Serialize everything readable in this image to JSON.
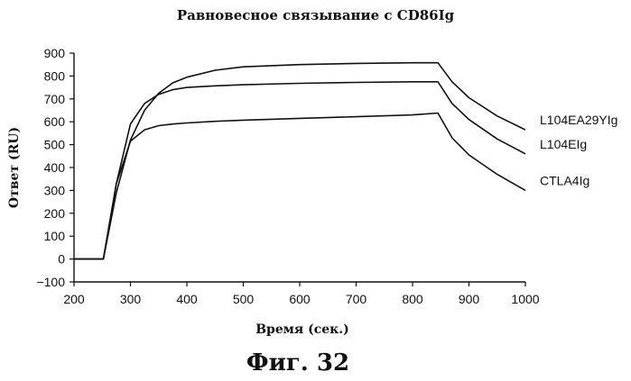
{
  "chart_data": {
    "type": "line",
    "title": "Равновесное связывание с CD86Ig",
    "xlabel": "Время (сек.)",
    "ylabel": "Ответ (RU)",
    "caption": "Фиг. 32",
    "xlim": [
      200,
      1000
    ],
    "ylim": [
      -100,
      900
    ],
    "xticks": [
      200,
      300,
      400,
      500,
      600,
      700,
      800,
      900,
      1000
    ],
    "yticks": [
      -100,
      0,
      100,
      200,
      300,
      400,
      500,
      600,
      700,
      800,
      900
    ],
    "grid": false,
    "legend": "labels at line ends (right)",
    "series": [
      {
        "name": "L104EA29YIg",
        "x": [
          200,
          252,
          275,
          300,
          325,
          350,
          375,
          400,
          450,
          500,
          600,
          700,
          800,
          845,
          870,
          900,
          950,
          1000
        ],
        "y": [
          0,
          0,
          290,
          520,
          650,
          725,
          770,
          795,
          825,
          840,
          850,
          855,
          858,
          858,
          775,
          705,
          625,
          565
        ]
      },
      {
        "name": "L104EIg",
        "x": [
          200,
          252,
          275,
          300,
          325,
          350,
          375,
          400,
          450,
          500,
          600,
          700,
          800,
          845,
          870,
          900,
          950,
          1000
        ],
        "y": [
          0,
          0,
          330,
          590,
          680,
          720,
          740,
          750,
          757,
          762,
          768,
          772,
          775,
          775,
          680,
          610,
          525,
          460
        ]
      },
      {
        "name": "CTLA4Ig",
        "x": [
          200,
          252,
          275,
          300,
          325,
          350,
          375,
          400,
          450,
          500,
          600,
          700,
          800,
          845,
          870,
          900,
          950,
          1000
        ],
        "y": [
          0,
          0,
          330,
          515,
          565,
          583,
          590,
          595,
          602,
          607,
          615,
          622,
          630,
          638,
          530,
          455,
          370,
          300
        ]
      }
    ]
  }
}
